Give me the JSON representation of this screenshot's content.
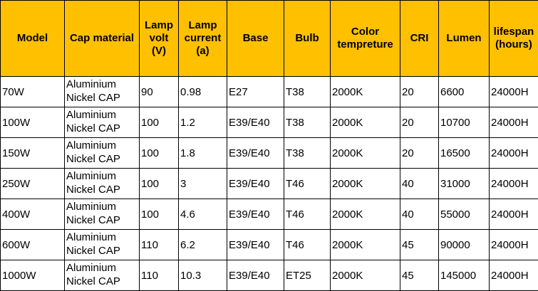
{
  "table": {
    "header": [
      "Model",
      "Cap material",
      "Lamp volt (V)",
      "Lamp current (a)",
      "Base",
      "Bulb",
      "Color tempreture",
      "CRI",
      "Lumen",
      "lifespan (hours)"
    ],
    "rows": [
      [
        "70W",
        "Aluminium Nickel CAP",
        "90",
        "0.98",
        "E27",
        "T38",
        "2000K",
        "20",
        "6600",
        "24000H"
      ],
      [
        "100W",
        "Aluminium Nickel CAP",
        "100",
        "1.2",
        "E39/E40",
        "T38",
        "2000K",
        "20",
        "10700",
        "24000H"
      ],
      [
        "150W",
        "Aluminium Nickel CAP",
        "100",
        "1.8",
        "E39/E40",
        "T38",
        "2000K",
        "20",
        "16500",
        "24000H"
      ],
      [
        "250W",
        "Aluminium Nickel CAP",
        "100",
        "3",
        "E39/E40",
        "T46",
        "2000K",
        "40",
        "31000",
        "24000H"
      ],
      [
        "400W",
        "Aluminium Nickel CAP",
        "100",
        "4.6",
        "E39/E40",
        "T46",
        "2000K",
        "40",
        "55000",
        "24000H"
      ],
      [
        "600W",
        "Aluminium Nickel CAP",
        "110",
        "6.2",
        "E39/E40",
        "T46",
        "2000K",
        "45",
        "90000",
        "24000H"
      ],
      [
        "1000W",
        "Aluminium Nickel CAP",
        "110",
        "10.3",
        "E39/E40",
        "ET25",
        "2000K",
        "45",
        "145000",
        "24000H"
      ]
    ]
  }
}
